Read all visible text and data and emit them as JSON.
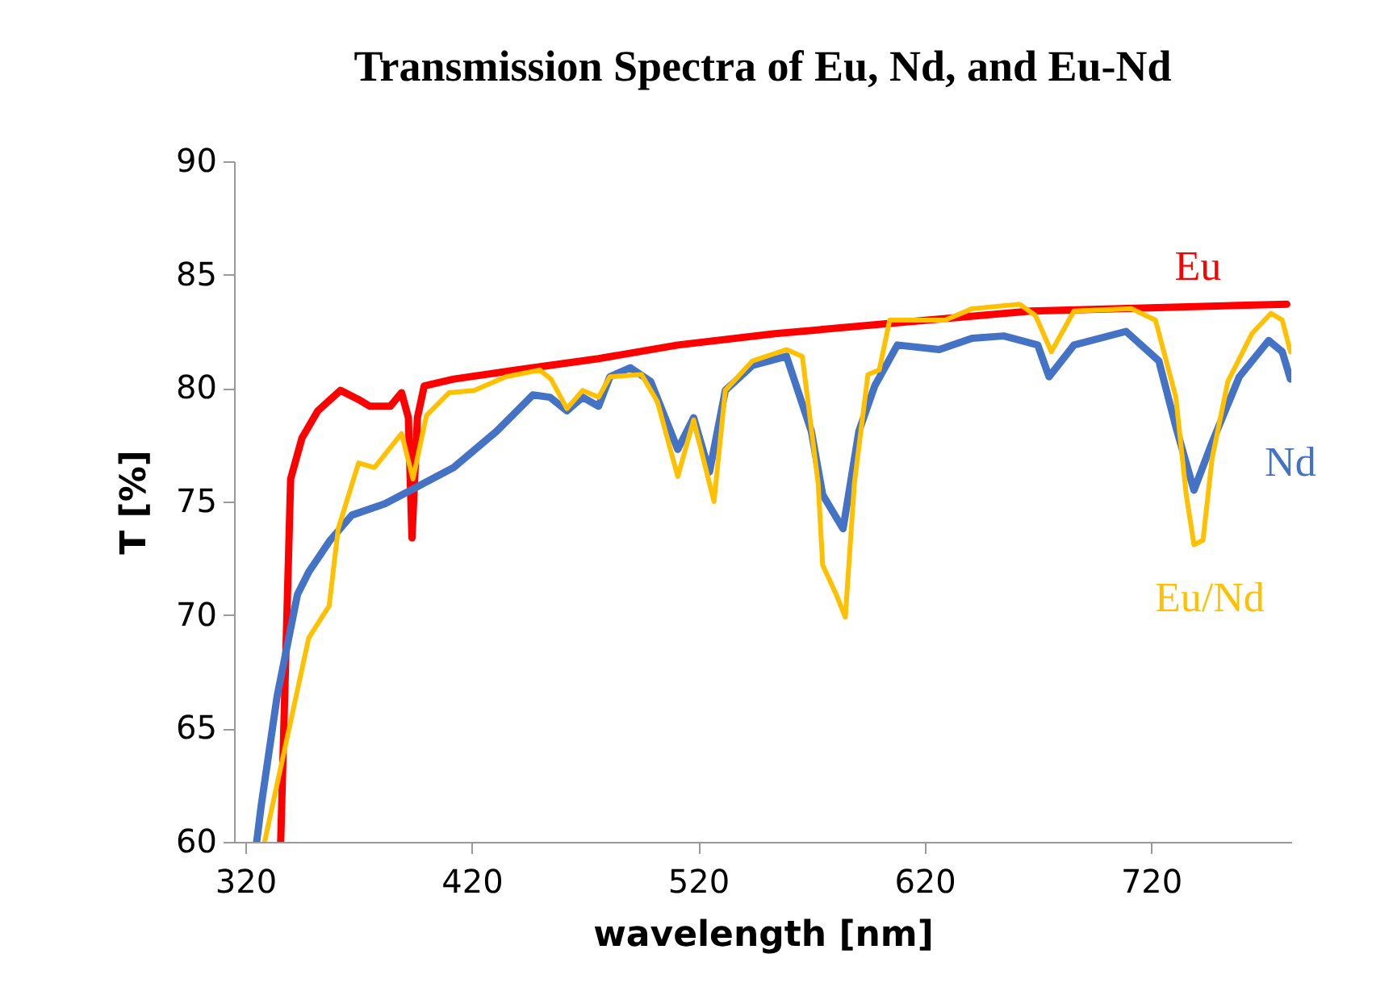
{
  "chart_data": {
    "type": "line",
    "title": "Transmission Spectra of Eu, Nd, and Eu-Nd",
    "xlabel": "wavelength [nm]",
    "ylabel": "T [%]",
    "xlim": [
      315,
      782
    ],
    "ylim": [
      60,
      90
    ],
    "xticks": [
      320,
      420,
      520,
      620,
      720
    ],
    "yticks": [
      60,
      65,
      70,
      75,
      80,
      85,
      90
    ],
    "grid": false,
    "series": [
      {
        "name": "Eu",
        "color": "#ff0000",
        "x": [
          335.6,
          340,
          345,
          352,
          362,
          370,
          375,
          384,
          389,
          392,
          393.6,
          396,
          399,
          412,
          440,
          476,
          511,
          554,
          610,
          667,
          780
        ],
        "values": [
          60,
          76,
          77.8,
          79,
          79.9,
          79.5,
          79.2,
          79.2,
          79.8,
          78.7,
          73.4,
          78.7,
          80.1,
          80.4,
          80.8,
          81.3,
          81.9,
          82.4,
          82.9,
          83.4,
          83.7
        ]
      },
      {
        "name": "Nd",
        "color": "#4472c4",
        "x": [
          325,
          327,
          334,
          343,
          348,
          357.5,
          367,
          381.6,
          393,
          412,
          431,
          447,
          454.5,
          462,
          469,
          476,
          481,
          490,
          499,
          511,
          518,
          525,
          532,
          544,
          559,
          570,
          575,
          584,
          591,
          598,
          608,
          626.5,
          641,
          655,
          670,
          675,
          686,
          709,
          723.5,
          731,
          739,
          747,
          759,
          772,
          778,
          781.6
        ],
        "values": [
          60,
          61.6,
          66.4,
          70.9,
          71.9,
          73.3,
          74.4,
          74.9,
          75.5,
          76.5,
          78.1,
          79.7,
          79.6,
          79,
          79.6,
          79.2,
          80.5,
          80.9,
          80.3,
          77.3,
          78.7,
          76.3,
          79.9,
          81,
          81.4,
          78.1,
          75.3,
          73.8,
          78.1,
          80.1,
          81.9,
          81.7,
          82.2,
          82.3,
          81.9,
          80.5,
          81.9,
          82.5,
          81.2,
          78.3,
          75.5,
          77.6,
          80.5,
          82.1,
          81.6,
          80.4
        ]
      },
      {
        "name": "Eu/Nd",
        "color": "#ffc000",
        "x": [
          328.5,
          348,
          357,
          361,
          370,
          377,
          389,
          394,
          400,
          410,
          421,
          435,
          450,
          455,
          462,
          469,
          476,
          481,
          495,
          502,
          511,
          518,
          527,
          532,
          544,
          559,
          566,
          573,
          575,
          581,
          585,
          589,
          595,
          600,
          604.6,
          622,
          629,
          641,
          662,
          669,
          676,
          686,
          711.5,
          722,
          731,
          735.6,
          739,
          743,
          747,
          754,
          764.6,
          773,
          778,
          781.6
        ],
        "values": [
          60,
          69,
          70.4,
          73.8,
          76.7,
          76.5,
          78,
          76,
          78.8,
          79.8,
          79.9,
          80.5,
          80.8,
          80.4,
          79.1,
          79.9,
          79.6,
          80.5,
          80.6,
          79.4,
          76.1,
          78.6,
          75,
          79.9,
          81.2,
          81.7,
          81.4,
          75.8,
          72.2,
          70.9,
          69.9,
          75.8,
          80.6,
          80.8,
          83,
          83,
          83,
          83.5,
          83.7,
          83.2,
          81.6,
          83.4,
          83.5,
          83,
          79.6,
          75.3,
          73.1,
          73.3,
          76.9,
          80.3,
          82.4,
          83.3,
          83,
          81.6
        ]
      }
    ]
  }
}
